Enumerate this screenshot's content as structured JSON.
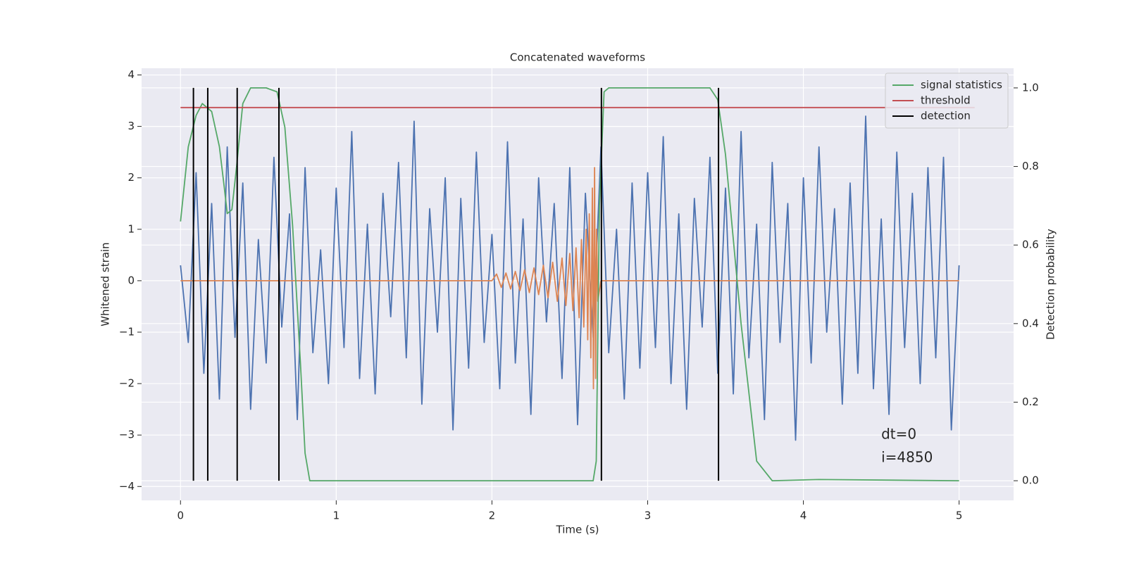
{
  "chart_data": {
    "type": "line",
    "title": "Concatenated waveforms",
    "x_label": "Time (s)",
    "y_label": "Whitened strain",
    "y2_label": "Detection probability",
    "xlim": [
      -0.25,
      5.35
    ],
    "ylim": [
      -4.27,
      4.13
    ],
    "y2lim": [
      -0.05,
      1.05
    ],
    "xticks": [
      0,
      1,
      2,
      3,
      4,
      5
    ],
    "yticks": [
      {
        "value": -4,
        "label": "−4"
      },
      {
        "value": -3,
        "label": "−3"
      },
      {
        "value": -2,
        "label": "−2"
      },
      {
        "value": -1,
        "label": "−1"
      },
      0,
      1,
      2,
      3,
      4
    ],
    "y2ticks": [
      {
        "value": 0,
        "label": "0.0"
      },
      0.2,
      0.4,
      0.6,
      0.8,
      {
        "value": 1,
        "label": "1.0"
      }
    ],
    "grid": true,
    "legend": "upper right",
    "series": [
      {
        "color": "#4c72b0",
        "axis": "y",
        "x": [
          0,
          0.05,
          0.1,
          0.15,
          0.2,
          0.25,
          0.3,
          0.35,
          0.4,
          0.45,
          0.5,
          0.55,
          0.6,
          0.65,
          0.7,
          0.75,
          0.8,
          0.85,
          0.9,
          0.95,
          1,
          1.05,
          1.1,
          1.15,
          1.2,
          1.25,
          1.3,
          1.35,
          1.4,
          1.45,
          1.5,
          1.55,
          1.6,
          1.65,
          1.7,
          1.75,
          1.8,
          1.85,
          1.9,
          1.95,
          2,
          2.05,
          2.1,
          2.15,
          2.2,
          2.25,
          2.3,
          2.35,
          2.4,
          2.45,
          2.5,
          2.55,
          2.6,
          2.65,
          2.7,
          2.75,
          2.8,
          2.85,
          2.9,
          2.95,
          3,
          3.05,
          3.1,
          3.15,
          3.2,
          3.25,
          3.3,
          3.35,
          3.4,
          3.45,
          3.5,
          3.55,
          3.6,
          3.65,
          3.7,
          3.75,
          3.8,
          3.85,
          3.9,
          3.95,
          4,
          4.05,
          4.1,
          4.15,
          4.2,
          4.25,
          4.3,
          4.35,
          4.4,
          4.45,
          4.5,
          4.55,
          4.6,
          4.65,
          4.7,
          4.75,
          4.8,
          4.85,
          4.9,
          4.95,
          5
        ],
        "values": [
          0.3,
          -1.2,
          2.1,
          -1.8,
          1.5,
          -2.3,
          2.6,
          -1.1,
          1.9,
          -2.5,
          0.8,
          -1.6,
          2.4,
          -0.9,
          1.3,
          -2.7,
          2.2,
          -1.4,
          0.6,
          -2.0,
          1.8,
          -1.3,
          2.9,
          -1.9,
          1.1,
          -2.2,
          1.7,
          -0.7,
          2.3,
          -1.5,
          3.1,
          -2.4,
          1.4,
          -1.0,
          2.0,
          -2.9,
          1.6,
          -1.7,
          2.5,
          -1.2,
          0.9,
          -2.1,
          2.7,
          -1.6,
          1.2,
          -2.6,
          2.0,
          -0.8,
          1.5,
          -1.9,
          2.2,
          -2.8,
          1.7,
          -1.1,
          2.6,
          -1.4,
          1.0,
          -2.3,
          1.9,
          -1.7,
          2.1,
          -1.3,
          2.8,
          -2.0,
          1.3,
          -2.5,
          1.6,
          -0.9,
          2.4,
          -1.8,
          1.8,
          -2.2,
          2.9,
          -1.5,
          1.1,
          -2.7,
          2.3,
          -1.2,
          1.5,
          -3.1,
          2.0,
          -1.6,
          2.6,
          -1.0,
          1.4,
          -2.4,
          1.9,
          -1.8,
          3.2,
          -2.1,
          1.2,
          -2.6,
          2.5,
          -1.3,
          1.7,
          -2.0,
          2.2,
          -1.5,
          2.4,
          -2.9,
          0.3
        ]
      },
      {
        "color": "#dd8452",
        "axis": "y",
        "x": [
          0,
          2.0,
          2.03,
          2.06,
          2.09,
          2.12,
          2.15,
          2.18,
          2.21,
          2.24,
          2.27,
          2.3,
          2.33,
          2.36,
          2.39,
          2.42,
          2.45,
          2.475,
          2.5,
          2.52,
          2.54,
          2.56,
          2.575,
          2.59,
          2.605,
          2.615,
          2.625,
          2.635,
          2.645,
          2.652,
          2.659,
          2.666,
          2.672,
          2.68,
          2.7,
          5
        ],
        "values": [
          0,
          0,
          0.13,
          -0.13,
          0.15,
          -0.16,
          0.18,
          -0.19,
          0.21,
          -0.23,
          0.25,
          -0.27,
          0.3,
          -0.33,
          0.36,
          -0.4,
          0.44,
          -0.48,
          0.53,
          -0.58,
          0.64,
          -0.72,
          0.8,
          -0.9,
          1.0,
          -1.15,
          1.3,
          -1.5,
          1.8,
          -2.1,
          2.2,
          -1.9,
          1.0,
          -0.4,
          0,
          0
        ]
      },
      {
        "name": "signal statistics",
        "color": "#55a868",
        "axis": "y2",
        "x": [
          0,
          0.05,
          0.1,
          0.14,
          0.2,
          0.25,
          0.28,
          0.3,
          0.33,
          0.36,
          0.4,
          0.45,
          0.55,
          0.62,
          0.67,
          0.72,
          0.77,
          0.8,
          0.83,
          1.0,
          2.65,
          2.67,
          2.69,
          2.72,
          2.75,
          3.4,
          3.45,
          3.5,
          3.6,
          3.7,
          3.8,
          4.1,
          5
        ],
        "values": [
          0.66,
          0.85,
          0.93,
          0.96,
          0.94,
          0.85,
          0.75,
          0.68,
          0.69,
          0.8,
          0.96,
          1,
          1,
          0.99,
          0.9,
          0.65,
          0.3,
          0.07,
          0,
          0,
          0,
          0.05,
          0.7,
          0.99,
          1,
          1,
          0.97,
          0.83,
          0.4,
          0.05,
          0,
          0.003,
          0
        ]
      },
      {
        "name": "threshold",
        "color": "#c44e52",
        "axis": "y2",
        "x": [
          0,
          5.1
        ],
        "values": [
          0.95,
          0.95
        ]
      },
      {
        "name": "detection",
        "color": "#000000",
        "axis": "y2",
        "kind": "vlines",
        "x": [
          0.083,
          0.175,
          0.364,
          0.632,
          2.703,
          3.455
        ],
        "ymin": 0,
        "ymax": 1
      }
    ],
    "annotations": [
      {
        "text": "dt=0",
        "x": 4.5,
        "y": -3.0
      },
      {
        "text": "i=4850",
        "x": 4.5,
        "y": -3.45
      }
    ]
  }
}
